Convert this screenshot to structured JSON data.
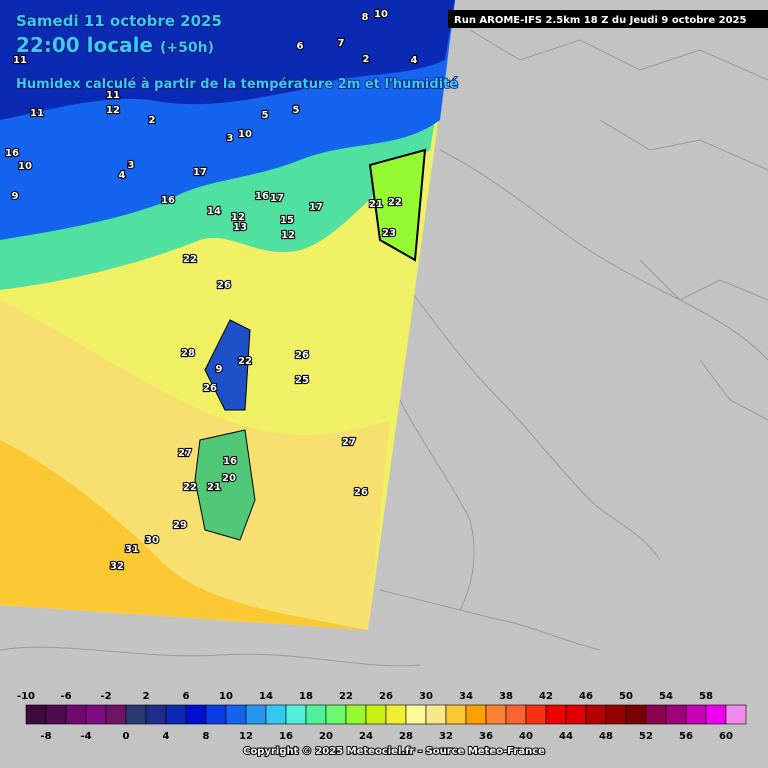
{
  "header": {
    "date": "Samedi 11 octobre 2025",
    "time": "22:00 locale",
    "lead": "(+50h)",
    "subtitle": "Humidex calculé à partir de la température 2m et l'humidité",
    "run": "Run AROME-IFS 2.5km 18 Z du Jeudi 9 octobre 2025"
  },
  "map_labels": [
    8,
    10,
    6,
    7,
    2,
    4,
    5,
    5,
    10,
    3,
    2,
    11,
    12,
    11,
    11,
    16,
    10,
    3,
    4,
    9,
    17,
    16,
    16,
    17,
    17,
    14,
    12,
    13,
    15,
    12,
    21,
    22,
    23,
    22,
    26,
    28,
    26,
    25,
    22,
    9,
    26,
    27,
    27,
    16,
    20,
    21,
    26,
    22,
    29,
    30,
    31,
    32
  ],
  "legend": {
    "values": [
      -10,
      -8,
      -6,
      -4,
      -2,
      0,
      2,
      4,
      6,
      8,
      10,
      12,
      14,
      16,
      18,
      20,
      22,
      24,
      26,
      28,
      30,
      32,
      34,
      36,
      38,
      40,
      42,
      44,
      46,
      48,
      50,
      52,
      54,
      56,
      58,
      60
    ],
    "colors": [
      "#3c0a3c",
      "#500a50",
      "#6e0a6e",
      "#800a80",
      "#6e1464",
      "#2a3a70",
      "#202c8c",
      "#0a2ab4",
      "#0010d0",
      "#0a3ce6",
      "#1464f0",
      "#2896f0",
      "#32c8f0",
      "#50f0dc",
      "#50f09a",
      "#6efa6e",
      "#96fa32",
      "#c8f014",
      "#f0f032",
      "#fafa96",
      "#fae68c",
      "#fac832",
      "#faa000",
      "#fa8232",
      "#fa6432",
      "#fa3214",
      "#f00000",
      "#dc0000",
      "#b40000",
      "#960000",
      "#780000",
      "#8c0050",
      "#a00078",
      "#c800b4",
      "#f000f0",
      "#f08cf0"
    ]
  },
  "copyright": "Copyright © 2025 Meteociel.fr - Source Meteo-France"
}
